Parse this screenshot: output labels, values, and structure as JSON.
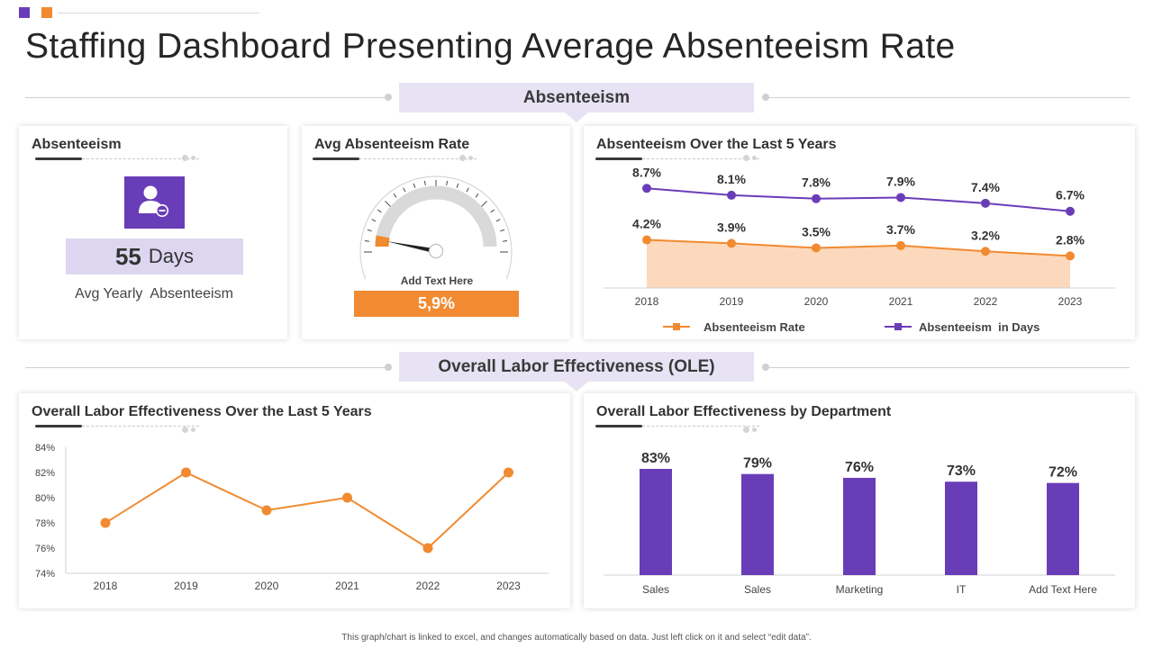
{
  "title": "Staffing Dashboard Presenting Average Absenteeism Rate",
  "colors": {
    "purple": "#6a3db8",
    "orange": "#f18a30",
    "banner": "#e7e3f4",
    "area": "#fcd9bd"
  },
  "sections": {
    "absenteeism": "Absenteeism",
    "ole": "Overall Labor Effectiveness (OLE)"
  },
  "absenteeism_card": {
    "title": "Absenteeism",
    "icon": "user-minus-icon",
    "value": "55",
    "unit": "Days",
    "subtitle": "Avg Yearly  Absenteeism"
  },
  "gauge_card": {
    "title": "Avg Absenteeism Rate",
    "note": "Add Text Here",
    "value_label": "5,9%",
    "value": 5.9,
    "max": 100
  },
  "footnote": "This graph/chart is linked to excel, and changes automatically based on data. Just left click on it and select “edit data”.",
  "chart_data": [
    {
      "type": "line",
      "title": "Absenteeism Over the Last 5 Years",
      "x": [
        "2018",
        "2019",
        "2020",
        "2021",
        "2022",
        "2023"
      ],
      "series": [
        {
          "name": "Absenteeism in Days",
          "values": [
            8.7,
            8.1,
            7.8,
            7.9,
            7.4,
            6.7
          ],
          "labels": [
            "8.7%",
            "8.1%",
            "7.8%",
            "7.9%",
            "7.4%",
            "6.7%"
          ],
          "style": "line"
        },
        {
          "name": "Absenteeism Rate",
          "values": [
            4.2,
            3.9,
            3.5,
            3.7,
            3.2,
            2.8
          ],
          "labels": [
            "4.2%",
            "3.9%",
            "3.5%",
            "3.7%",
            "3.2%",
            "2.8%"
          ],
          "style": "area"
        }
      ],
      "legend": [
        "Absenteeism Rate",
        "Absenteeism  in Days"
      ],
      "ylim": [
        0,
        11
      ],
      "legend_position": "bottom"
    },
    {
      "type": "line",
      "title": "Overall Labor Effectiveness Over the Last 5 Years",
      "x": [
        "2018",
        "2019",
        "2020",
        "2021",
        "2022",
        "2023"
      ],
      "values": [
        78,
        82,
        79,
        80,
        76,
        82
      ],
      "yticks": [
        "84%",
        "82%",
        "80%",
        "78%",
        "76%",
        "74%"
      ],
      "ylim": [
        74,
        84
      ]
    },
    {
      "type": "bar",
      "title": "Overall Labor Effectiveness by Department",
      "categories": [
        "Sales",
        "Sales",
        "Marketing",
        "IT",
        "Add Text Here"
      ],
      "values": [
        83,
        79,
        76,
        73,
        72
      ],
      "labels": [
        "83%",
        "79%",
        "76%",
        "73%",
        "72%"
      ],
      "ylim": [
        0,
        100
      ]
    }
  ]
}
